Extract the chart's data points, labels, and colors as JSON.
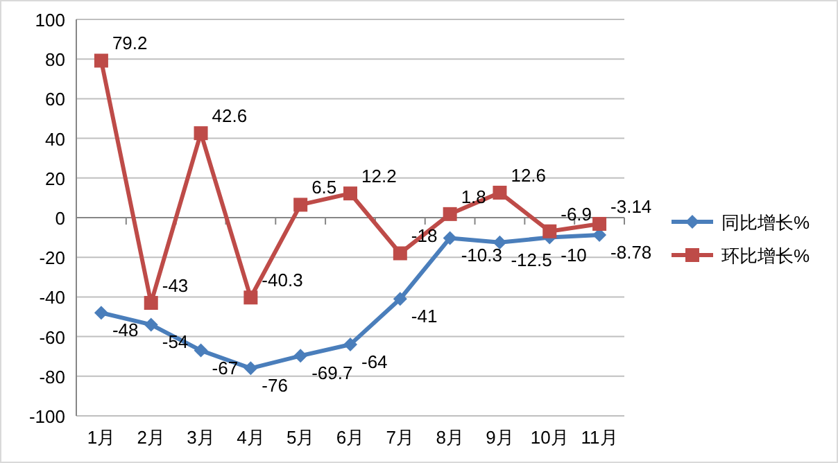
{
  "chart_data": {
    "type": "line",
    "categories": [
      "1月",
      "2月",
      "3月",
      "4月",
      "5月",
      "6月",
      "7月",
      "8月",
      "9月",
      "10月",
      "11月"
    ],
    "series": [
      {
        "name": "同比增长%",
        "color": "#4a7ebb",
        "marker": "diamond",
        "values": [
          -48,
          -54,
          -67,
          -76,
          -69.7,
          -64,
          -41,
          -10.3,
          -12.5,
          -10,
          -8.78
        ]
      },
      {
        "name": "环比增长%",
        "color": "#be4b48",
        "marker": "square",
        "values": [
          79.2,
          -43,
          42.6,
          -40.3,
          6.5,
          12.2,
          -18,
          1.8,
          12.6,
          -6.9,
          -3.14
        ]
      }
    ],
    "ylim": [
      -100,
      100
    ],
    "yticks": [
      -100,
      -80,
      -60,
      -40,
      -20,
      0,
      20,
      40,
      60,
      80,
      100
    ],
    "grid": "y",
    "legend": "right",
    "data_labels": true
  }
}
